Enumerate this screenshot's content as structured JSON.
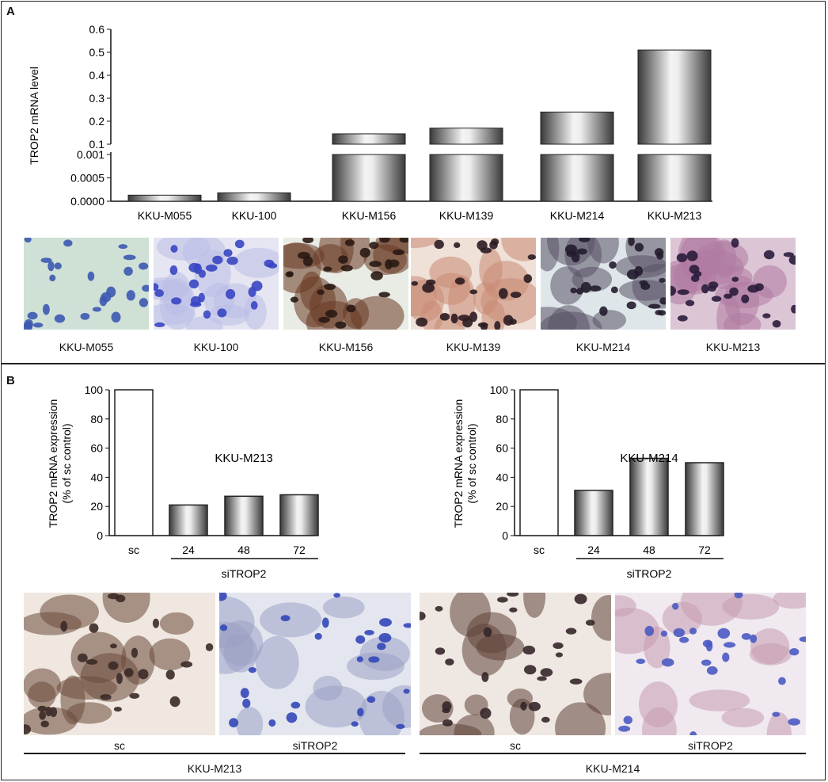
{
  "panel_a": {
    "label": "A",
    "cells": [
      {
        "label": "KKU-M055",
        "bg": "#cfe0d6",
        "nucleus": "#3c59b0",
        "stain": "#cfe0d6"
      },
      {
        "label": "KKU-100",
        "bg": "#e6e6f2",
        "nucleus": "#3945c2",
        "stain": "#b9bde6"
      },
      {
        "label": "KKU-M156",
        "bg": "#e9ece4",
        "nucleus": "#2a1a14",
        "stain": "#6a3a25"
      },
      {
        "label": "KKU-M139",
        "bg": "#efe1d8",
        "nucleus": "#2b1c22",
        "stain": "#c88a75"
      },
      {
        "label": "KKU-M214",
        "bg": "#dfe6ea",
        "nucleus": "#231c2e",
        "stain": "#5a5266"
      },
      {
        "label": "KKU-M213",
        "bg": "#dcc6d6",
        "nucleus": "#2a1c3c",
        "stain": "#b07aa2"
      }
    ]
  },
  "panel_b": {
    "label": "B",
    "images": [
      {
        "label": "sc",
        "bg": "#efe7e0",
        "nucleus": "#3b2a26",
        "stain": "#6b4a3a"
      },
      {
        "label": "siTROP2",
        "bg": "#e4e6ef",
        "nucleus": "#3347b8",
        "stain": "#9aa0c4"
      },
      {
        "label": "sc",
        "bg": "#efe7e2",
        "nucleus": "#35262a",
        "stain": "#5e4438"
      },
      {
        "label": "siTROP2",
        "bg": "#f0e9ef",
        "nucleus": "#4a5ac2",
        "stain": "#c79cb0"
      }
    ],
    "groups": [
      "KKU-M213",
      "KKU-M214"
    ]
  },
  "chart_data": [
    {
      "type": "bar",
      "title": "",
      "ylabel": "TROP2 mRNA level",
      "xlabel": "",
      "y_axis_break": true,
      "yticks_lower": [
        "0.0000",
        "0.0005",
        "0.001"
      ],
      "yticks_upper": [
        "0.1",
        "0.2",
        "0.3",
        "0.4",
        "0.5",
        "0.6"
      ],
      "ylim_lower": [
        0,
        0.001
      ],
      "ylim_upper": [
        0.1,
        0.6
      ],
      "categories": [
        "KKU-M055",
        "KKU-100",
        "KKU-M156",
        "KKU-M139",
        "KKU-M214",
        "KKU-M213"
      ],
      "values": [
        0.00013,
        0.00018,
        0.145,
        0.17,
        0.24,
        0.51
      ],
      "grid": false
    },
    {
      "type": "bar",
      "title": "",
      "annotation": "KKU-M213",
      "ylabel": "TROP2 mRNA expression (% of sc control)",
      "ylabel_lines": [
        "TROP2 mRNA expression",
        "(% of sc control)"
      ],
      "xlabel": "",
      "group_label": "siTROP2",
      "categories": [
        "sc",
        "24",
        "48",
        "72"
      ],
      "values": [
        100,
        21,
        27,
        28
      ],
      "ylim": [
        0,
        100
      ],
      "yticks": [
        0,
        20,
        40,
        60,
        80,
        100
      ],
      "grid": false
    },
    {
      "type": "bar",
      "title": "",
      "annotation": "KKU-M214",
      "ylabel": "TROP2 mRNA expression (% of sc control)",
      "ylabel_lines": [
        "TROP2 mRNA expression",
        "(% of sc control)"
      ],
      "xlabel": "",
      "group_label": "siTROP2",
      "categories": [
        "sc",
        "24",
        "48",
        "72"
      ],
      "values": [
        100,
        31,
        53,
        50
      ],
      "ylim": [
        0,
        100
      ],
      "yticks": [
        0,
        20,
        40,
        60,
        80,
        100
      ],
      "grid": false
    }
  ]
}
